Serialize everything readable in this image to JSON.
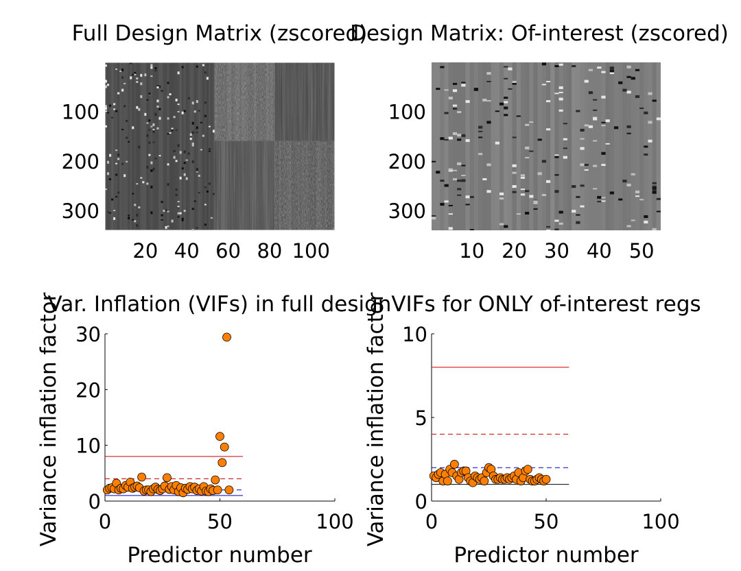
{
  "chart_data": [
    {
      "type": "heatmap",
      "title": "Full Design Matrix (zscored)",
      "ytick_values": [
        100,
        200,
        300
      ],
      "xtick_values": [
        20,
        40,
        60,
        80,
        100
      ],
      "xlim": [
        0.5,
        111.5
      ],
      "ylim": [
        0.5,
        340.5
      ],
      "colormap": "gray",
      "blocks": [
        {
          "columns": [
            1,
            53
          ],
          "rows": [
            1,
            340
          ],
          "base": "#4d4d4d",
          "pattern": "sparse-events"
        },
        {
          "columns": [
            54,
            82
          ],
          "rows": [
            1,
            160
          ],
          "base": "#555555",
          "pattern": "dense-noise"
        },
        {
          "columns": [
            54,
            82
          ],
          "rows": [
            160,
            340
          ],
          "base": "#4a4a4a",
          "pattern": "stripes"
        },
        {
          "columns": [
            83,
            111
          ],
          "rows": [
            1,
            160
          ],
          "base": "#444444",
          "pattern": "stripes"
        },
        {
          "columns": [
            83,
            111
          ],
          "rows": [
            160,
            340
          ],
          "base": "#474747",
          "pattern": "dense-noise"
        }
      ]
    },
    {
      "type": "heatmap",
      "title": "Design Matrix: Of-interest (zscored)",
      "ytick_values": [
        100,
        200,
        300
      ],
      "xtick_values": [
        10,
        20,
        30,
        40,
        50
      ],
      "xlim": [
        0.5,
        54.5
      ],
      "ylim": [
        0.5,
        340.5
      ],
      "colormap": "gray",
      "blocks": [
        {
          "columns": [
            1,
            54
          ],
          "rows": [
            1,
            340
          ],
          "base": "#7f7f7f",
          "pattern": "sparse-events"
        }
      ]
    },
    {
      "type": "scatter",
      "title": "Var. Inflation (VIFs) in full design",
      "xlabel": "Predictor number",
      "ylabel": "Variance inflation factor",
      "xlim": [
        0,
        100
      ],
      "ylim": [
        0,
        30
      ],
      "xtick_values": [
        0,
        50,
        100
      ],
      "ytick_values": [
        0,
        10,
        20,
        30
      ],
      "marker_color": "#ff7f00",
      "marker_edge": "#000000",
      "x": [
        1,
        2,
        3,
        4,
        5,
        6,
        7,
        8,
        9,
        10,
        11,
        12,
        13,
        14,
        15,
        16,
        17,
        18,
        19,
        20,
        21,
        22,
        23,
        24,
        25,
        26,
        27,
        28,
        29,
        30,
        31,
        32,
        33,
        34,
        35,
        36,
        37,
        38,
        39,
        40,
        41,
        42,
        43,
        44,
        45,
        46,
        47,
        48,
        49,
        50,
        51,
        52,
        53,
        54
      ],
      "values": [
        2.0,
        2.3,
        2.4,
        2.2,
        3.2,
        2.0,
        2.3,
        2.2,
        2.8,
        2.5,
        3.4,
        2.3,
        2.5,
        2.7,
        2.4,
        4.3,
        1.8,
        2.0,
        2.0,
        1.7,
        2.2,
        2.5,
        2.1,
        1.9,
        2.2,
        2.7,
        4.2,
        2.1,
        2.6,
        2.0,
        2.8,
        1.7,
        2.4,
        1.5,
        2.3,
        2.1,
        2.6,
        2.2,
        2.5,
        1.9,
        2.2,
        1.8,
        2.6,
        1.8,
        1.7,
        2.2,
        1.9,
        3.8,
        2.0,
        11.6,
        6.9,
        9.7,
        29.4,
        2.0
      ],
      "reference_lines": [
        {
          "y": 8,
          "style": "solid",
          "color": "#cc0000",
          "x_range": [
            0,
            60
          ]
        },
        {
          "y": 4,
          "style": "dashed",
          "color": "#cc0000",
          "x_range": [
            0,
            60
          ]
        },
        {
          "y": 2,
          "style": "dashed",
          "color": "#0000cc",
          "x_range": [
            0,
            60
          ]
        },
        {
          "y": 1,
          "style": "solid",
          "color": "#0000cc",
          "x_range": [
            0,
            60
          ]
        }
      ]
    },
    {
      "type": "scatter",
      "title": "VIFs for ONLY of-interest regs",
      "xlabel": "Predictor number",
      "ylabel": "Variance inflation factor",
      "xlim": [
        0,
        100
      ],
      "ylim": [
        0,
        10
      ],
      "xtick_values": [
        0,
        50,
        100
      ],
      "ytick_values": [
        0,
        5,
        10
      ],
      "marker_color": "#ff7f00",
      "marker_edge": "#000000",
      "x": [
        1,
        2,
        3,
        4,
        5,
        6,
        7,
        8,
        9,
        10,
        11,
        12,
        13,
        14,
        15,
        16,
        17,
        18,
        19,
        20,
        21,
        22,
        23,
        24,
        25,
        26,
        27,
        28,
        29,
        30,
        31,
        32,
        33,
        34,
        35,
        36,
        37,
        38,
        39,
        40,
        41,
        42,
        43,
        44,
        45,
        46,
        47,
        48,
        49,
        50
      ],
      "values": [
        1.5,
        1.4,
        1.6,
        1.7,
        1.2,
        1.6,
        1.2,
        1.9,
        1.7,
        2.2,
        1.5,
        1.3,
        1.7,
        1.8,
        1.8,
        1.4,
        1.2,
        1.1,
        1.5,
        1.4,
        1.3,
        1.4,
        1.2,
        1.7,
        2.0,
        1.9,
        1.5,
        1.3,
        1.3,
        1.4,
        1.3,
        1.3,
        1.4,
        1.3,
        1.4,
        1.5,
        1.3,
        1.7,
        1.2,
        1.4,
        1.8,
        1.9,
        1.3,
        1.2,
        1.2,
        1.3,
        1.4,
        1.3,
        1.2,
        1.3
      ],
      "reference_lines": [
        {
          "y": 8,
          "style": "solid",
          "color": "#cc0000",
          "x_range": [
            0,
            60
          ]
        },
        {
          "y": 4,
          "style": "dashed",
          "color": "#cc0000",
          "x_range": [
            0,
            60
          ]
        },
        {
          "y": 2,
          "style": "dashed",
          "color": "#0000cc",
          "x_range": [
            0,
            60
          ]
        },
        {
          "y": 1,
          "style": "solid",
          "color": "#000000",
          "x_range": [
            0,
            60
          ]
        }
      ]
    }
  ]
}
